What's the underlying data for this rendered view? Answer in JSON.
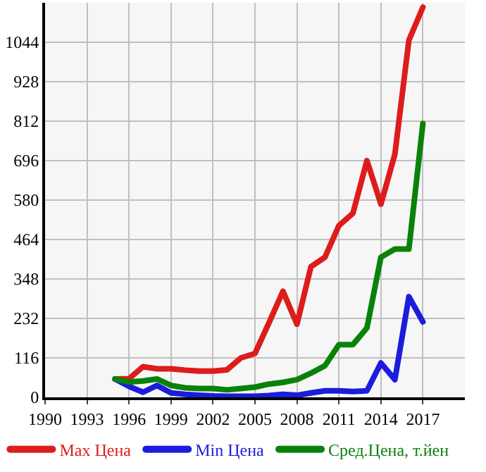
{
  "chart_data": {
    "type": "line",
    "x": [
      1995,
      1996,
      1997,
      1998,
      1999,
      2000,
      2001,
      2002,
      2003,
      2004,
      2005,
      2006,
      2007,
      2008,
      2009,
      2010,
      2011,
      2012,
      2013,
      2014,
      2015,
      2016,
      2017
    ],
    "series": [
      {
        "name": "Max Цена",
        "color": "#dd1c1c",
        "values": [
          54,
          55,
          90,
          84,
          84,
          80,
          77,
          77,
          81,
          116,
          129,
          219,
          312,
          215,
          384,
          412,
          505,
          541,
          696,
          568,
          715,
          1050,
          1147
        ]
      },
      {
        "name": "Min Цена",
        "color": "#1c1cdd",
        "values": [
          54,
          32,
          15,
          35,
          13,
          9,
          6,
          4,
          3,
          3,
          3,
          5,
          9,
          6,
          13,
          19,
          19,
          17,
          19,
          101,
          52,
          296,
          222
        ]
      },
      {
        "name": "Сред.Цена, т.йен",
        "color": "#0a820a",
        "values": [
          54,
          45,
          48,
          54,
          35,
          28,
          26,
          26,
          22,
          26,
          30,
          39,
          44,
          52,
          71,
          93,
          155,
          155,
          204,
          412,
          436,
          436,
          805
        ]
      }
    ],
    "xlim": [
      1990,
      2020
    ],
    "xticks": [
      1990,
      1993,
      1996,
      1999,
      2002,
      2005,
      2008,
      2011,
      2014,
      2017
    ],
    "ylim": [
      0,
      1160
    ],
    "yticks": [
      0,
      116,
      232,
      348,
      464,
      580,
      696,
      812,
      928,
      1044
    ],
    "grid": true,
    "legend": "bottom",
    "marker": "none",
    "line_style": "solid"
  }
}
